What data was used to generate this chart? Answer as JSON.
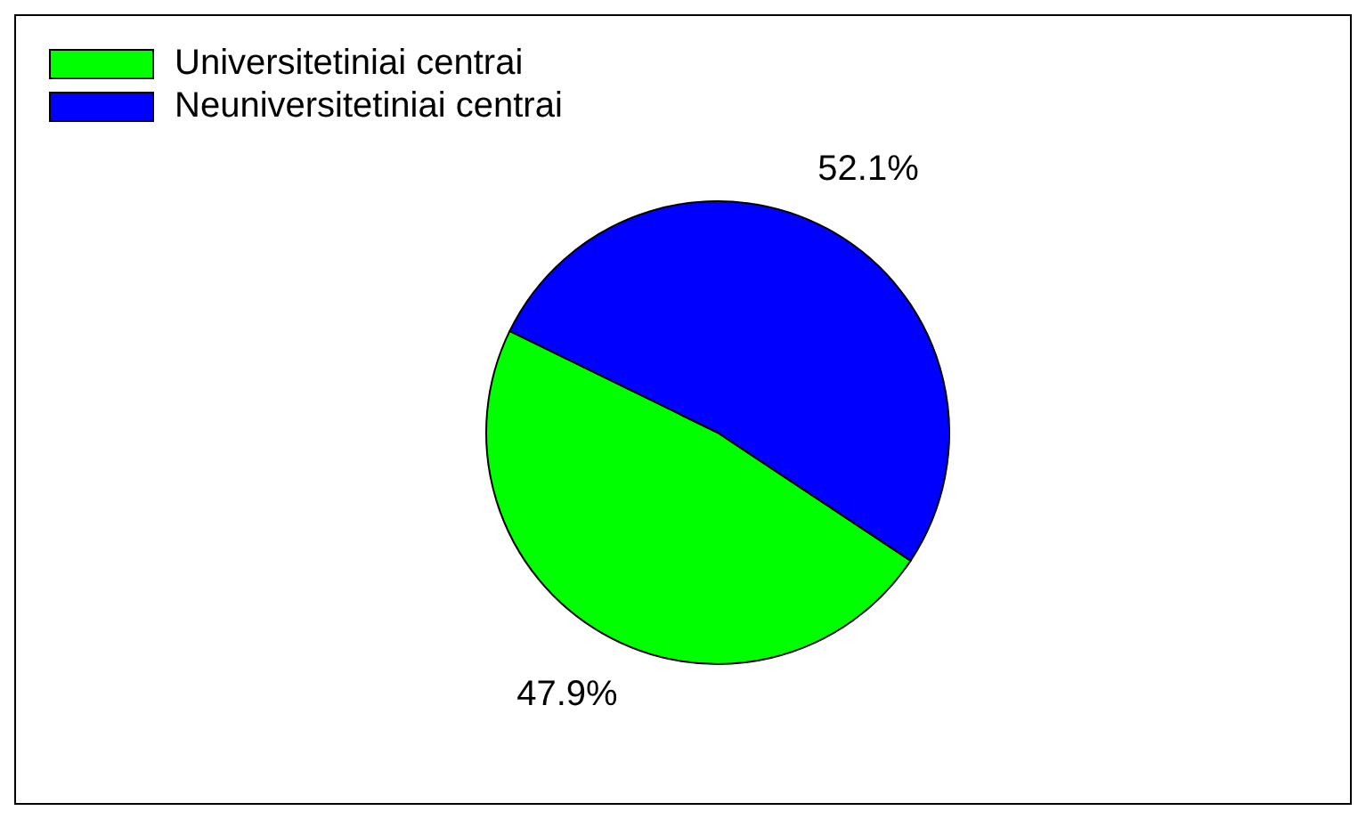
{
  "chart_data": {
    "type": "pie",
    "categories": [
      "Universitetiniai centrai",
      "Neuniversitetiniai centrai"
    ],
    "values": [
      47.9,
      52.1
    ],
    "colors": [
      "#00ff00",
      "#0000ff"
    ],
    "value_labels": [
      "47.9%",
      "52.1%"
    ],
    "legend": "top left"
  }
}
